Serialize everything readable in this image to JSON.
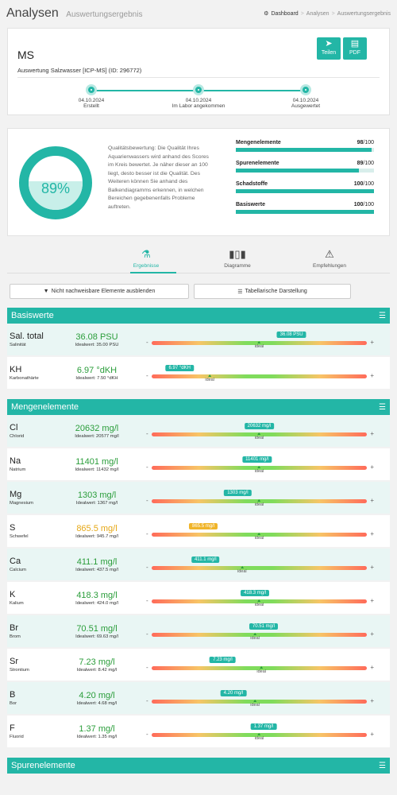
{
  "header": {
    "title": "Analysen",
    "subtitle": "Auswertungsergebnis",
    "crumbs": [
      "Dashboard",
      "Analysen",
      "Auswertungsergebnis"
    ]
  },
  "result": {
    "name": "MS",
    "desc": "Auswertung Salzwasser [ICP-MS] (ID: 296772)",
    "share_label": "Teilen",
    "pdf_label": "PDF",
    "timeline": [
      {
        "date": "04.10.2024",
        "label": "Erstellt"
      },
      {
        "date": "04.10.2024",
        "label": "Im Labor angekommen"
      },
      {
        "date": "04.10.2024",
        "label": "Ausgewertet"
      }
    ]
  },
  "quality": {
    "percent": 89,
    "percent_label": "89%",
    "text": "Qualitätsbewertung: Die Qualität Ihres Aquarienwassers wird anhand des Scores im Kreis bewertet. Je näher dieser an 100 liegt, desto besser ist die Qualität. Des Weiteren können Sie anhand des Balkendiagramms erkennen, in welchen Bereichen gegebenenfalls Probleme auftreten.",
    "categories": [
      {
        "name": "Mengenelemente",
        "score": "98",
        "max": "/100",
        "value": 98
      },
      {
        "name": "Spurenelemente",
        "score": "89",
        "max": "/100",
        "value": 89
      },
      {
        "name": "Schadstoffe",
        "score": "100",
        "max": "/100",
        "value": 100
      },
      {
        "name": "Basiswerte",
        "score": "100",
        "max": "/100",
        "value": 100
      }
    ]
  },
  "tabs": [
    {
      "label": "Ergebnisse",
      "icon": "flask-icon"
    },
    {
      "label": "Diagramme",
      "icon": "bar-chart-icon"
    },
    {
      "label": "Empfehlungen",
      "icon": "warning-icon"
    }
  ],
  "filters": {
    "hide_label": "Nicht nachweisbare Elemente ausblenden",
    "table_label": "Tabellarische Darstellung"
  },
  "gauge_labels": {
    "minus": "-",
    "plus": "+",
    "ideal": "ideal"
  },
  "sections": [
    {
      "title": "Basiswerte",
      "rows": [
        {
          "sym": "Sal. total",
          "name": "Salinität",
          "value": "36.08 PSU",
          "ideal": "Idealwert: 35.00 PSU",
          "tag": "36.08 PSU",
          "status": "ok",
          "pos": 0.65,
          "ideal_pos": 0.5
        },
        {
          "sym": "KH",
          "name": "Karbonathärte",
          "value": "6.97 °dKH",
          "ideal": "Idealwert: 7.50 °dKH",
          "tag": "6.97 °dKH",
          "status": "ok",
          "pos": 0.13,
          "ideal_pos": 0.27
        }
      ]
    },
    {
      "title": "Mengenelemente",
      "rows": [
        {
          "sym": "Cl",
          "name": "Chlorid",
          "value": "20632 mg/l",
          "ideal": "Idealwert: 20577 mg/l",
          "tag": "20632 mg/l",
          "status": "ok",
          "pos": 0.5,
          "ideal_pos": 0.5
        },
        {
          "sym": "Na",
          "name": "Natrium",
          "value": "11401 mg/l",
          "ideal": "Idealwert: 11432 mg/l",
          "tag": "11401 mg/l",
          "status": "ok",
          "pos": 0.49,
          "ideal_pos": 0.5
        },
        {
          "sym": "Mg",
          "name": "Magnesium",
          "value": "1303 mg/l",
          "ideal": "Idealwert: 1367 mg/l",
          "tag": "1303 mg/l",
          "status": "ok",
          "pos": 0.4,
          "ideal_pos": 0.5
        },
        {
          "sym": "S",
          "name": "Schwefel",
          "value": "865.5 mg/l",
          "ideal": "Idealwert: 945.7 mg/l",
          "tag": "865.5 mg/l",
          "status": "warn",
          "pos": 0.24,
          "ideal_pos": 0.5
        },
        {
          "sym": "Ca",
          "name": "Calcium",
          "value": "411.1 mg/l",
          "ideal": "Idealwert: 437.5 mg/l",
          "tag": "411.1 mg/l",
          "status": "ok",
          "pos": 0.25,
          "ideal_pos": 0.42
        },
        {
          "sym": "K",
          "name": "Kalium",
          "value": "418.3 mg/l",
          "ideal": "Idealwert: 424.0 mg/l",
          "tag": "418.3 mg/l",
          "status": "ok",
          "pos": 0.48,
          "ideal_pos": 0.5
        },
        {
          "sym": "Br",
          "name": "Brom",
          "value": "70.51 mg/l",
          "ideal": "Idealwert: 69.63 mg/l",
          "tag": "70.51 mg/l",
          "status": "ok",
          "pos": 0.52,
          "ideal_pos": 0.48
        },
        {
          "sym": "Sr",
          "name": "Strontium",
          "value": "7.23 mg/l",
          "ideal": "Idealwert: 8.42 mg/l",
          "tag": "7.23 mg/l",
          "status": "ok",
          "pos": 0.33,
          "ideal_pos": 0.51
        },
        {
          "sym": "B",
          "name": "Bor",
          "value": "4.20 mg/l",
          "ideal": "Idealwert: 4.68 mg/l",
          "tag": "4.20 mg/l",
          "status": "ok",
          "pos": 0.38,
          "ideal_pos": 0.48
        },
        {
          "sym": "F",
          "name": "Fluorid",
          "value": "1.37 mg/l",
          "ideal": "Idealwert: 1.35 mg/l",
          "tag": "1.37 mg/l",
          "status": "ok",
          "pos": 0.52,
          "ideal_pos": 0.5
        }
      ]
    },
    {
      "title": "Spurenelemente",
      "rows": []
    }
  ]
}
